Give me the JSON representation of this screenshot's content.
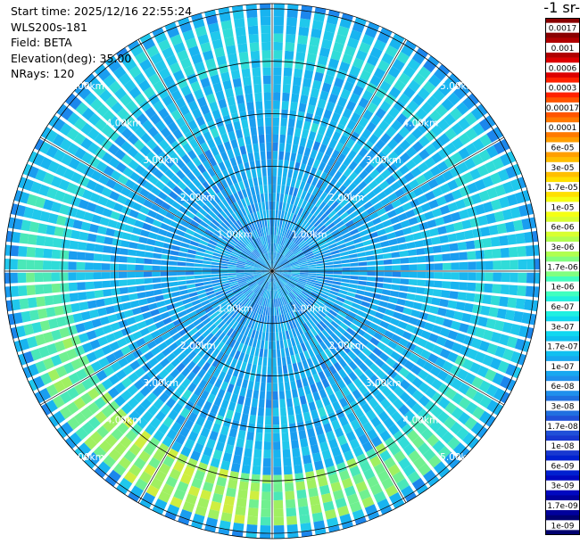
{
  "info": {
    "start_time": "Start time: 2025/12/16 22:55:24",
    "instrument": "WLS200s-181",
    "field": "Field: BETA",
    "elevation": "Elevation(deg): 35.00",
    "nrays": "NRays: 120"
  },
  "colorbar": {
    "title": "-1 sr-",
    "labels": [
      "0.0017",
      "0.001",
      "0.0006",
      "0.0003",
      "0.00017",
      "0.0001",
      "6e-05",
      "3e-05",
      "1.7e-05",
      "1e-05",
      "6e-06",
      "3e-06",
      "1.7e-06",
      "1e-06",
      "6e-07",
      "3e-07",
      "1.7e-07",
      "1e-07",
      "6e-08",
      "3e-08",
      "1.7e-08",
      "1e-08",
      "6e-09",
      "3e-09",
      "1.7e-09",
      "1e-09"
    ],
    "colors": [
      "#8a0000",
      "#b00000",
      "#dd0000",
      "#ff2200",
      "#ff5500",
      "#ff7a00",
      "#ff9f00",
      "#ffbf00",
      "#ffe000",
      "#f5ff14",
      "#d8ff30",
      "#b0ff50",
      "#80ff80",
      "#40ffbf",
      "#20f0e0",
      "#10d8f0",
      "#10c0f0",
      "#18a8f0",
      "#2090ec",
      "#2070e0",
      "#2050d8",
      "#1838d0",
      "#0020d0",
      "#0008c0",
      "#00009c",
      "#000070"
    ]
  },
  "chart_data": {
    "type": "polar-ppi",
    "field": "BETA",
    "elevation_deg": 35.0,
    "n_rays": 120,
    "ring_labels": [
      "1.00km",
      "2.00km",
      "3.00km",
      "4.00km",
      "5.00km"
    ],
    "rings_km": [
      1,
      2,
      3,
      4,
      5
    ],
    "max_range_km": 5.1,
    "spokes_deg": [
      0,
      30,
      60,
      90,
      120,
      150,
      180,
      210,
      240,
      270,
      300,
      330
    ],
    "aerosol_ring_km_range": [
      3.8,
      4.8
    ],
    "colorscale": "log",
    "value_range": [
      1e-09,
      0.0017
    ]
  }
}
